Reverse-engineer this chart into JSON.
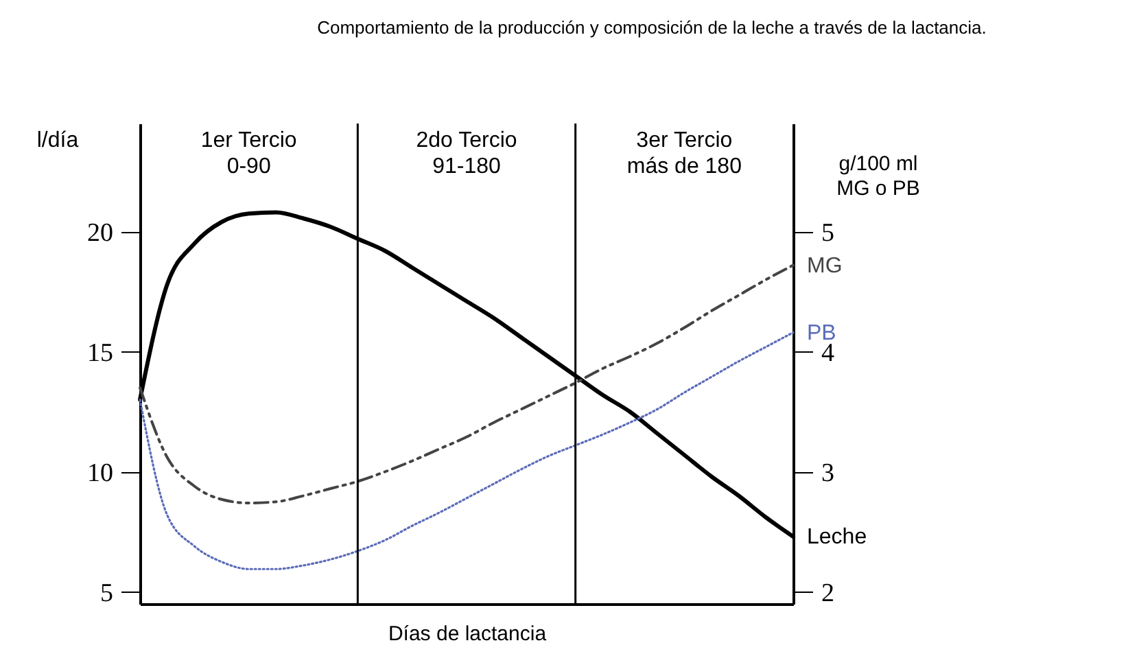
{
  "chart_data": {
    "type": "line",
    "title": "Comportamiento de la producción y composición de la leche a través de la lactancia.",
    "xlabel": "Días de lactancia",
    "ylabel": "l/día",
    "y2label": "g/100 ml\nMG o PB",
    "ylim": [
      4.5,
      24.5
    ],
    "yticks": [
      5,
      10,
      15,
      20
    ],
    "y2lim": [
      1.9,
      5.9
    ],
    "y2ticks": [
      2,
      3,
      4,
      5
    ],
    "grid": false,
    "categories": [
      null,
      null,
      null,
      null,
      null,
      null,
      null,
      null,
      null,
      null,
      null,
      null,
      null,
      null,
      null,
      null,
      null,
      null,
      null,
      null,
      null,
      null,
      null,
      null,
      null
    ],
    "series": [
      {
        "name": "Leche",
        "color": "#000000",
        "line_style": "solid",
        "values": [
          13.0,
          17.8,
          19.5,
          20.4,
          20.75,
          20.8,
          20.55,
          20.2,
          19.7,
          19.2,
          18.5,
          17.8,
          17.1,
          16.4,
          15.6,
          14.8,
          14.0,
          13.2,
          12.5,
          11.6,
          10.7,
          9.8,
          9.0,
          8.1,
          7.3
        ]
      },
      {
        "name": "MG",
        "color": "#444444",
        "line_style": "dashed",
        "axis": "y2",
        "values": [
          3.7,
          3.12,
          2.88,
          2.77,
          2.74,
          2.75,
          2.8,
          2.86,
          2.92,
          3.0,
          3.09,
          3.19,
          3.29,
          3.41,
          3.52,
          3.63,
          3.74,
          3.86,
          3.96,
          4.07,
          4.2,
          4.34,
          4.47,
          4.6,
          4.72
        ]
      },
      {
        "name": "PB",
        "color": "#5a6bb8",
        "line_style": "dotted",
        "axis": "y2",
        "values": [
          3.6,
          2.64,
          2.38,
          2.25,
          2.19,
          2.19,
          2.22,
          2.27,
          2.34,
          2.43,
          2.55,
          2.66,
          2.78,
          2.9,
          3.02,
          3.13,
          3.22,
          3.31,
          3.41,
          3.52,
          3.66,
          3.79,
          3.92,
          4.04,
          4.16
        ]
      }
    ],
    "annotations": [
      "1er Tercio\n0-90",
      "2do Tercio\n91-180",
      "3er Tercio\nmás de 180"
    ]
  }
}
